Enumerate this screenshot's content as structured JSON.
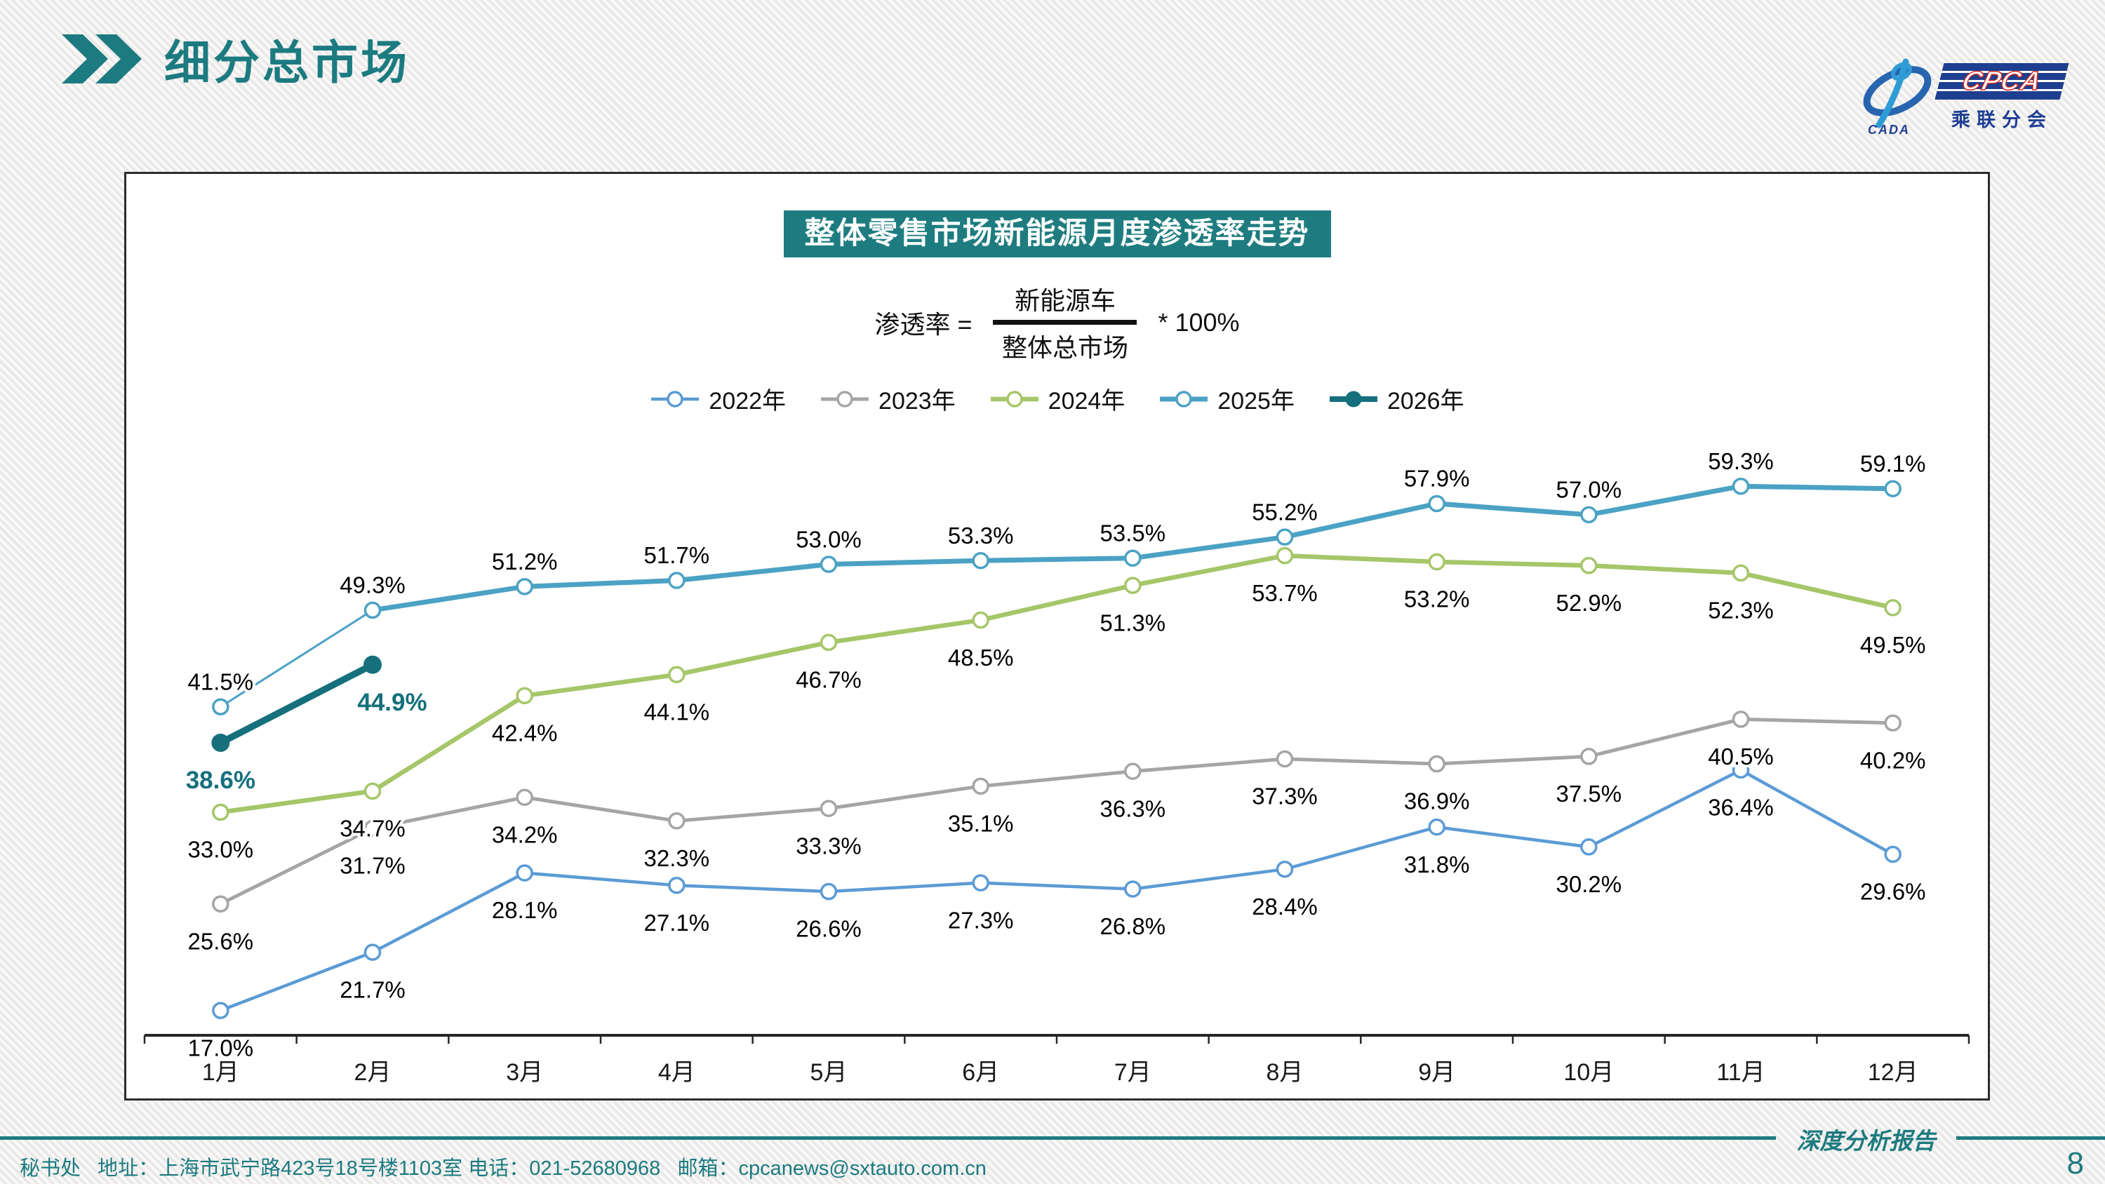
{
  "header": {
    "title": "细分总市场"
  },
  "logo": {
    "cpca": "CPCA",
    "cada": "CADA",
    "subtitle": "乘联分会"
  },
  "chart": {
    "banner_title": "整体零售市场新能源月度渗透率走势",
    "formula": {
      "lhs": "渗透率 =",
      "numerator": "新能源车",
      "denominator": "整体总市场",
      "rhs": "* 100%"
    }
  },
  "chart_data": {
    "type": "line",
    "title": "整体零售市场新能源月度渗透率走势",
    "unit": "%",
    "categories": [
      "1月",
      "2月",
      "3月",
      "4月",
      "5月",
      "6月",
      "7月",
      "8月",
      "9月",
      "10月",
      "11月",
      "12月"
    ],
    "ylim": [
      15,
      63
    ],
    "grid": false,
    "legend_position": "top",
    "series": [
      {
        "name": "2022年",
        "color": "#5B9BD5",
        "line_width": 4.5,
        "marker": "open",
        "label_position": "below",
        "values": [
          17.0,
          21.7,
          28.1,
          27.1,
          26.6,
          27.3,
          26.8,
          28.4,
          31.8,
          30.2,
          36.4,
          29.6
        ]
      },
      {
        "name": "2023年",
        "color": "#A5A5A5",
        "line_width": 5,
        "marker": "open",
        "label_position": "below",
        "values": [
          25.6,
          31.7,
          34.2,
          32.3,
          33.3,
          35.1,
          36.3,
          37.3,
          36.9,
          37.5,
          40.5,
          40.2
        ]
      },
      {
        "name": "2024年",
        "color": "#A5C669",
        "line_width": 6.5,
        "marker": "open",
        "label_position": "below",
        "values": [
          33.0,
          34.7,
          42.4,
          44.1,
          46.7,
          48.5,
          51.3,
          53.7,
          53.2,
          52.9,
          52.3,
          49.5
        ]
      },
      {
        "name": "2025年",
        "color": "#4BA2C4",
        "line_width": 7,
        "marker": "open",
        "label_position": "above",
        "thin_first_segment": true,
        "values": [
          41.5,
          49.3,
          51.2,
          51.7,
          53.0,
          53.3,
          53.5,
          55.2,
          57.9,
          57.0,
          59.3,
          59.1
        ]
      },
      {
        "name": "2026年",
        "color": "#15707C",
        "line_width": 9.5,
        "marker": "filled",
        "label_position": "below",
        "label_color": "#15707C",
        "label_bold": true,
        "label_dx": [
          0,
          28
        ],
        "values": [
          38.6,
          44.9
        ]
      }
    ]
  },
  "footer": {
    "contact": "秘书处   地址：上海市武宁路423号18号楼1103室 电话：021-52680968   邮箱：cpcanews@sxtauto.com.cn",
    "report_label": "深度分析报告",
    "page_number": "8"
  },
  "colors": {
    "accent_teal": "#1d7a80",
    "banner_bg": "#1e7c80",
    "logo_blue": "#1E3E8F",
    "logo_red": "#d42b1e"
  }
}
